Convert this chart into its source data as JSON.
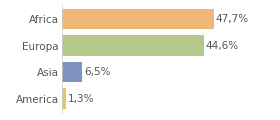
{
  "categories": [
    "America",
    "Asia",
    "Europa",
    "Africa"
  ],
  "values": [
    1.3,
    6.5,
    44.6,
    47.7
  ],
  "labels": [
    "1,3%",
    "6,5%",
    "44,6%",
    "47,7%"
  ],
  "bar_colors": [
    "#e8c468",
    "#8090c0",
    "#b5c98a",
    "#f0b878"
  ],
  "background_color": "#ffffff",
  "xlim": [
    0,
    58
  ],
  "label_fontsize": 7.5,
  "tick_fontsize": 7.5,
  "bar_height": 0.78
}
